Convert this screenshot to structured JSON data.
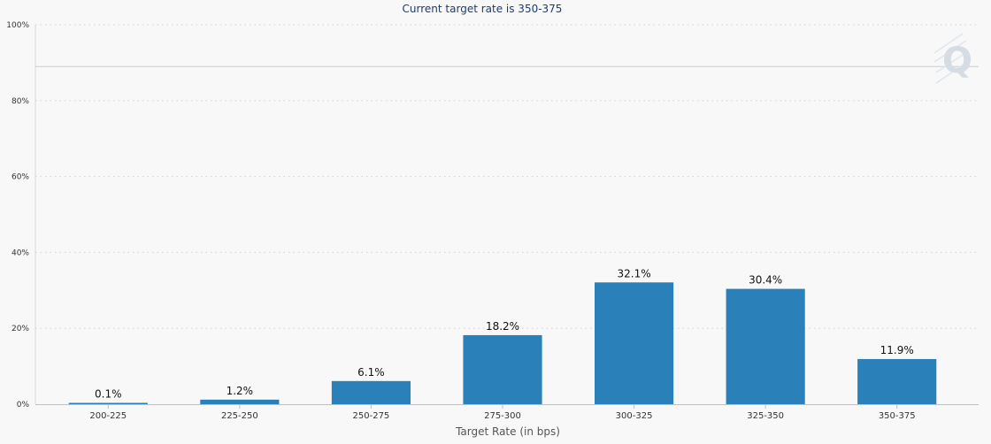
{
  "chart_data": {
    "type": "bar",
    "title": "Current target rate is 350-375",
    "xlabel": "Target Rate (in bps)",
    "ylabel": "",
    "ylim": [
      0,
      100
    ],
    "yticks": [
      "0%",
      "20%",
      "40%",
      "60%",
      "80%",
      "100%"
    ],
    "ytick_values": [
      0,
      20,
      40,
      60,
      80,
      100
    ],
    "grid": true,
    "categories": [
      "200-225",
      "225-250",
      "250-275",
      "275-300",
      "300-325",
      "325-350",
      "350-375"
    ],
    "values": [
      0.1,
      1.2,
      6.1,
      18.2,
      32.1,
      30.4,
      11.9
    ],
    "data_labels": [
      "0.1%",
      "1.2%",
      "6.1%",
      "18.2%",
      "32.1%",
      "30.4%",
      "11.9%"
    ],
    "bar_color": "#2a80b9",
    "reference_line_value": 89
  },
  "watermark": {
    "letter": "Q"
  }
}
